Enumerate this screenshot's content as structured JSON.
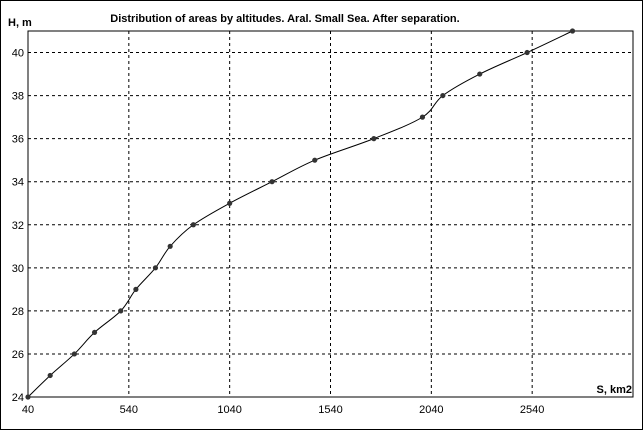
{
  "chart_data": {
    "type": "line",
    "title": "Distribution of areas by altitudes. Aral. Small Sea. After separation.",
    "ylabel": "H, m",
    "xlabel": "S, km2",
    "xlim": [
      40,
      3040
    ],
    "ylim": [
      24,
      41
    ],
    "xticks": [
      40,
      540,
      1040,
      1540,
      2040,
      2540
    ],
    "yticks": [
      24,
      26,
      28,
      30,
      32,
      34,
      36,
      38,
      40
    ],
    "grid": true,
    "legend": "none",
    "colors": {
      "line": "#000000",
      "marker": "#333333",
      "grid": "#000000"
    },
    "series": [
      {
        "x": [
          40,
          150,
          270,
          370,
          500,
          575,
          672,
          745,
          860,
          1040,
          1250,
          1462,
          1755,
          1996,
          2097,
          2280,
          2515,
          2740
        ],
        "y": [
          24,
          25,
          26,
          27,
          28,
          29,
          30,
          31,
          32,
          33,
          34,
          35,
          36,
          37,
          38,
          39,
          40,
          41
        ]
      }
    ]
  }
}
